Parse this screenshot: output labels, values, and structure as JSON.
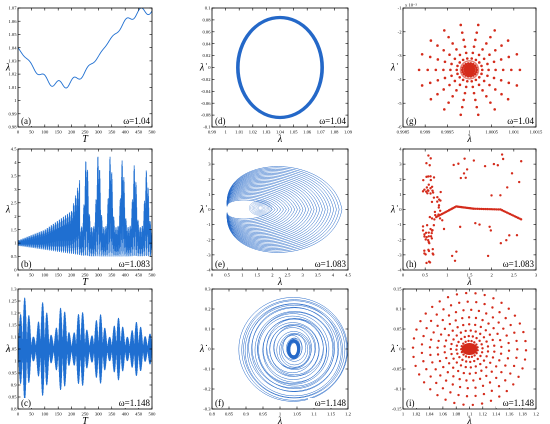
{
  "figure": {
    "colors": {
      "time_series": "#1f6fd1",
      "phase": "#2468c8",
      "poincare": "#d42b1b"
    },
    "panel_tags": [
      "(a)",
      "(b)",
      "(c)",
      "(d)",
      "(e)",
      "(f)",
      "(g)",
      "(h)",
      "(i)"
    ]
  },
  "chart_data": [
    {
      "panel": "(a)",
      "type": "line",
      "label": "ω=1.04",
      "xlabel": "T",
      "ylabel": "λ",
      "xlim": [
        0,
        500
      ],
      "ylim": [
        0.98,
        1.07
      ],
      "xticks": [
        "0",
        "50",
        "100",
        "150",
        "200",
        "250",
        "300",
        "350",
        "400",
        "450",
        "500"
      ],
      "yticks": [
        "0.98",
        "0.99",
        "1",
        "1.01",
        "1.02",
        "1.03",
        "1.04",
        "1.05",
        "1.06",
        "1.07"
      ],
      "series": [
        {
          "description_values": {
            "mean": 1.04,
            "amplitude": 0.028,
            "envelope_ripple": 0.003
          }
        }
      ]
    },
    {
      "panel": "(b)",
      "type": "line",
      "label": "ω=1.083",
      "xlabel": "T",
      "ylabel": "λ",
      "xlim": [
        0,
        500
      ],
      "ylim": [
        0,
        4.5
      ],
      "xticks": [
        "0",
        "50",
        "100",
        "150",
        "200",
        "250",
        "300",
        "350",
        "400",
        "450",
        "500"
      ],
      "yticks": [
        "0",
        "0.5",
        "1",
        "1.5",
        "2",
        "2.5",
        "3",
        "3.5",
        "4",
        "4.5"
      ],
      "series": [
        {
          "envelope_peaks": [
            {
              "t": 0,
              "upper": 1.1,
              "lower": 0.9
            },
            {
              "t": 100,
              "upper": 1.5,
              "lower": 0.75
            },
            {
              "t": 200,
              "upper": 2.2,
              "lower": 0.6
            },
            {
              "t": 255,
              "upper": 4.3,
              "lower": 0.5
            },
            {
              "t": 310,
              "upper": 4.4,
              "lower": 0.5
            },
            {
              "t": 355,
              "upper": 4.3,
              "lower": 0.5
            },
            {
              "t": 400,
              "upper": 4.1,
              "lower": 0.5
            },
            {
              "t": 445,
              "upper": 3.9,
              "lower": 0.5
            },
            {
              "t": 490,
              "upper": 3.7,
              "lower": 0.5
            }
          ]
        }
      ]
    },
    {
      "panel": "(c)",
      "type": "line",
      "label": "ω=1.148",
      "xlabel": "T",
      "ylabel": "λ",
      "xlim": [
        0,
        500
      ],
      "ylim": [
        0.8,
        1.3
      ],
      "xticks": [
        "0",
        "50",
        "100",
        "150",
        "200",
        "250",
        "300",
        "350",
        "400",
        "450",
        "500"
      ],
      "yticks": [
        "0.8",
        "0.85",
        "0.9",
        "0.95",
        "1",
        "1.05",
        "1.1",
        "1.15",
        "1.2",
        "1.25",
        "1.3"
      ],
      "series": [
        {
          "beat_maxima_t": [
            25,
            95,
            165,
            230,
            300,
            370,
            440
          ],
          "mean": 1.05,
          "max_amplitude_start": 0.22,
          "max_amplitude_end": 0.1,
          "min_amplitude": 0.05
        }
      ]
    },
    {
      "panel": "(d)",
      "type": "line",
      "label": "ω=1.04",
      "xlabel": "λ",
      "ylabel": "λ̇",
      "xlim": [
        0.99,
        1.09
      ],
      "ylim": [
        -0.1,
        0.1
      ],
      "xticks": [
        "0.99",
        "1",
        "1.01",
        "1.02",
        "1.03",
        "1.04",
        "1.05",
        "1.06",
        "1.07",
        "1.08",
        "1.09"
      ],
      "yticks": [
        "-0.1",
        "-0.08",
        "-0.06",
        "-0.04",
        "-0.02",
        "0",
        "0.02",
        "0.04",
        "0.06",
        "0.08",
        "0.1"
      ],
      "series": [
        {
          "center": [
            1.04,
            0.0
          ],
          "rx": 0.03,
          "ry": 0.082
        }
      ]
    },
    {
      "panel": "(e)",
      "type": "line",
      "label": "ω=1.083",
      "xlabel": "λ",
      "ylabel": "λ̇",
      "xlim": [
        0,
        4.5
      ],
      "ylim": [
        -4,
        4
      ],
      "xticks": [
        "0",
        "0.5",
        "1",
        "1.5",
        "2",
        "2.5",
        "3",
        "3.5",
        "4",
        "4.5"
      ],
      "yticks": [
        "-4",
        "-3",
        "-2",
        "-1",
        "0",
        "1",
        "2",
        "3",
        "4"
      ],
      "series": [
        {
          "left_edge": 0.5,
          "right_edge_range": [
            2.0,
            4.3
          ],
          "dot_center": [
            1.6,
            0.1
          ]
        }
      ]
    },
    {
      "panel": "(f)",
      "type": "line",
      "label": "ω=1.148",
      "xlabel": "λ",
      "ylabel": "λ̇",
      "xlim": [
        0.8,
        1.2
      ],
      "ylim": [
        -0.3,
        0.3
      ],
      "xticks": [
        "0.8",
        "0.85",
        "0.9",
        "0.95",
        "1",
        "1.05",
        "1.1",
        "1.15",
        "1.2"
      ],
      "yticks": [
        "-0.3",
        "-0.2",
        "-0.1",
        "0",
        "0.1",
        "0.2",
        "0.3"
      ],
      "series": [
        {
          "center": [
            1.04,
            0.0
          ],
          "outer_rx": 0.16,
          "outer_ry": 0.26,
          "inner_rx": 0.012,
          "inner_ry": 0.035
        }
      ]
    },
    {
      "panel": "(g)",
      "type": "scatter",
      "label": "ω=1.04",
      "xlabel": "λ",
      "ylabel": "λ̇",
      "exponent_label": "x 10⁻³",
      "xlim": [
        0.9985,
        1.0015
      ],
      "ylim": [
        -6,
        -1
      ],
      "xticks": [
        "0.9985",
        "0.999",
        "0.9995",
        "1",
        "1.0005",
        "1.001",
        "1.0015"
      ],
      "yticks": [
        "-6",
        "-5",
        "-4",
        "-3",
        "-2",
        "-1"
      ],
      "series": [
        {
          "center": [
            1.0,
            -3.6
          ],
          "rays": 18,
          "ray_points": 8
        }
      ]
    },
    {
      "panel": "(h)",
      "type": "scatter",
      "label": "ω=1.083",
      "xlabel": "λ",
      "ylabel": "λ̇",
      "xlim": [
        0,
        3
      ],
      "ylim": [
        -4,
        4
      ],
      "xticks": [
        "0",
        "0.5",
        "1",
        "1.5",
        "2",
        "2.5",
        "3"
      ],
      "yticks": [
        "-4",
        "-3",
        "-2",
        "-1",
        "0",
        "1",
        "2",
        "3",
        "4"
      ],
      "series": [
        {
          "curve": [
            [
              0.75,
              -0.5
            ],
            [
              1.2,
              0.2
            ],
            [
              1.6,
              0.05
            ],
            [
              2.2,
              0.0
            ],
            [
              2.7,
              -0.7
            ]
          ],
          "cluster_x": [
            0.45,
            0.7
          ]
        }
      ]
    },
    {
      "panel": "(i)",
      "type": "scatter",
      "label": "ω=1.148",
      "xlabel": "λ",
      "ylabel": "λ̇",
      "xlim": [
        1.0,
        1.2
      ],
      "ylim": [
        -0.15,
        0.15
      ],
      "xticks": [
        "1",
        "1.02",
        "1.04",
        "1.06",
        "1.08",
        "1.1",
        "1.12",
        "1.14",
        "1.16",
        "1.18",
        "1.2"
      ],
      "yticks": [
        "-0.15",
        "-0.1",
        "-0.05",
        "0",
        "0.05",
        "0.1",
        "0.15"
      ],
      "series": [
        {
          "center": [
            1.1,
            0.0
          ],
          "rings": 10,
          "max_rx": 0.085,
          "max_ry": 0.14
        }
      ]
    }
  ]
}
